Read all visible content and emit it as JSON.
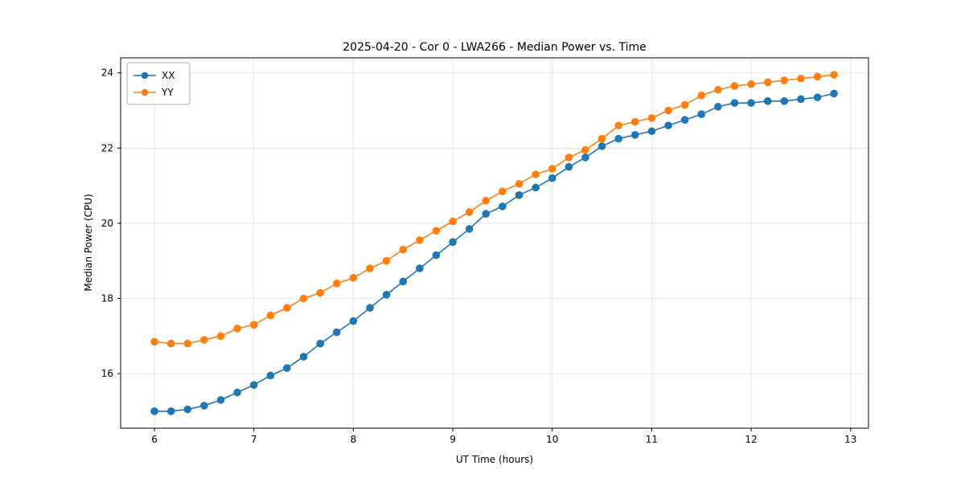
{
  "chart_data": {
    "type": "line",
    "title": "2025-04-20 - Cor 0 - LWA266 - Median Power vs. Time",
    "xlabel": "UT Time (hours)",
    "ylabel": "Median Power (CPU)",
    "grid": true,
    "legend_position": "upper left",
    "xlim": [
      5.66,
      13.18
    ],
    "ylim": [
      14.55,
      24.4
    ],
    "xticks": [
      6,
      7,
      8,
      9,
      10,
      11,
      12,
      13
    ],
    "yticks": [
      16,
      18,
      20,
      22,
      24
    ],
    "x": [
      6.0,
      6.167,
      6.333,
      6.5,
      6.667,
      6.833,
      7.0,
      7.167,
      7.333,
      7.5,
      7.667,
      7.833,
      8.0,
      8.167,
      8.333,
      8.5,
      8.667,
      8.833,
      9.0,
      9.167,
      9.333,
      9.5,
      9.667,
      9.833,
      10.0,
      10.167,
      10.333,
      10.5,
      10.667,
      10.833,
      11.0,
      11.167,
      11.333,
      11.5,
      11.667,
      11.833,
      12.0,
      12.167,
      12.333,
      12.5,
      12.667,
      12.833
    ],
    "series": [
      {
        "name": "XX",
        "color": "#1f77b4",
        "values": [
          15.0,
          15.0,
          15.05,
          15.15,
          15.3,
          15.5,
          15.7,
          15.95,
          16.15,
          16.45,
          16.8,
          17.1,
          17.4,
          17.75,
          18.1,
          18.45,
          18.8,
          19.15,
          19.5,
          19.85,
          20.25,
          20.45,
          20.75,
          20.95,
          21.2,
          21.5,
          21.75,
          22.05,
          22.25,
          22.35,
          22.45,
          22.6,
          22.75,
          22.9,
          23.1,
          23.2,
          23.2,
          23.25,
          23.25,
          23.3,
          23.35,
          23.45
        ]
      },
      {
        "name": "YY",
        "color": "#ff7f0e",
        "values": [
          16.85,
          16.8,
          16.8,
          16.9,
          17.0,
          17.2,
          17.3,
          17.55,
          17.75,
          18.0,
          18.15,
          18.4,
          18.55,
          18.8,
          19.0,
          19.3,
          19.55,
          19.8,
          20.05,
          20.3,
          20.6,
          20.85,
          21.05,
          21.3,
          21.45,
          21.75,
          21.95,
          22.25,
          22.6,
          22.7,
          22.8,
          23.0,
          23.15,
          23.4,
          23.55,
          23.65,
          23.7,
          23.75,
          23.8,
          23.85,
          23.9,
          23.95
        ]
      }
    ]
  }
}
